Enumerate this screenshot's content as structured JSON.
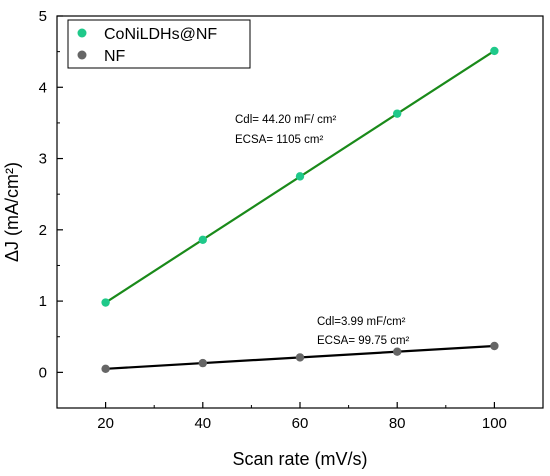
{
  "chart_data": {
    "type": "scatter",
    "xlabel": "Scan rate (mV/s)",
    "ylabel": "ΔJ (mA/cm²)",
    "xlim": [
      10,
      110
    ],
    "ylim": [
      -0.5,
      5
    ],
    "xticks": [
      20,
      40,
      60,
      80,
      100
    ],
    "yticks": [
      0,
      1,
      2,
      3,
      4,
      5
    ],
    "grid": false,
    "legend_position": "top-left",
    "series": [
      {
        "name": "CoNiLDHs@NF",
        "marker_color": "#1fc98a",
        "fit_line_color": "#1a8a1a",
        "points": [
          {
            "x": 20,
            "y": 0.98
          },
          {
            "x": 40,
            "y": 1.86
          },
          {
            "x": 60,
            "y": 2.75
          },
          {
            "x": 80,
            "y": 3.63
          },
          {
            "x": 100,
            "y": 4.51
          }
        ],
        "annotation": [
          "Cdl= 44.20 mF/ cm²",
          "ECSA= 1105 cm²"
        ]
      },
      {
        "name": "NF",
        "marker_color": "#666666",
        "fit_line_color": "#000000",
        "points": [
          {
            "x": 20,
            "y": 0.05
          },
          {
            "x": 40,
            "y": 0.13
          },
          {
            "x": 60,
            "y": 0.21
          },
          {
            "x": 80,
            "y": 0.29
          },
          {
            "x": 100,
            "y": 0.37
          }
        ],
        "annotation": [
          "Cdl=3.99 mF/cm²",
          "ECSA= 99.75 cm²"
        ]
      }
    ]
  }
}
